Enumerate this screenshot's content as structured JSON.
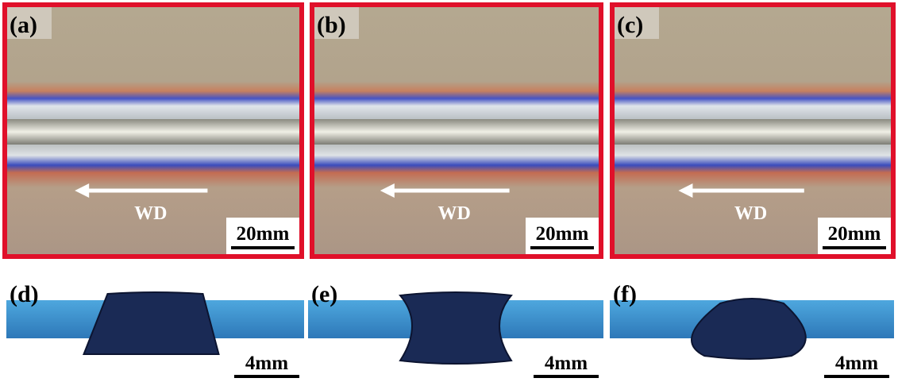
{
  "panels": [
    {
      "label": "(a)",
      "direction": "WD",
      "scale": "20mm"
    },
    {
      "label": "(b)",
      "direction": "WD",
      "scale": "20mm"
    },
    {
      "label": "(c)",
      "direction": "WD",
      "scale": "20mm"
    },
    {
      "label": "(d)",
      "scale": "4mm"
    },
    {
      "label": "(e)",
      "scale": "4mm"
    },
    {
      "label": "(f)",
      "scale": "4mm"
    }
  ]
}
